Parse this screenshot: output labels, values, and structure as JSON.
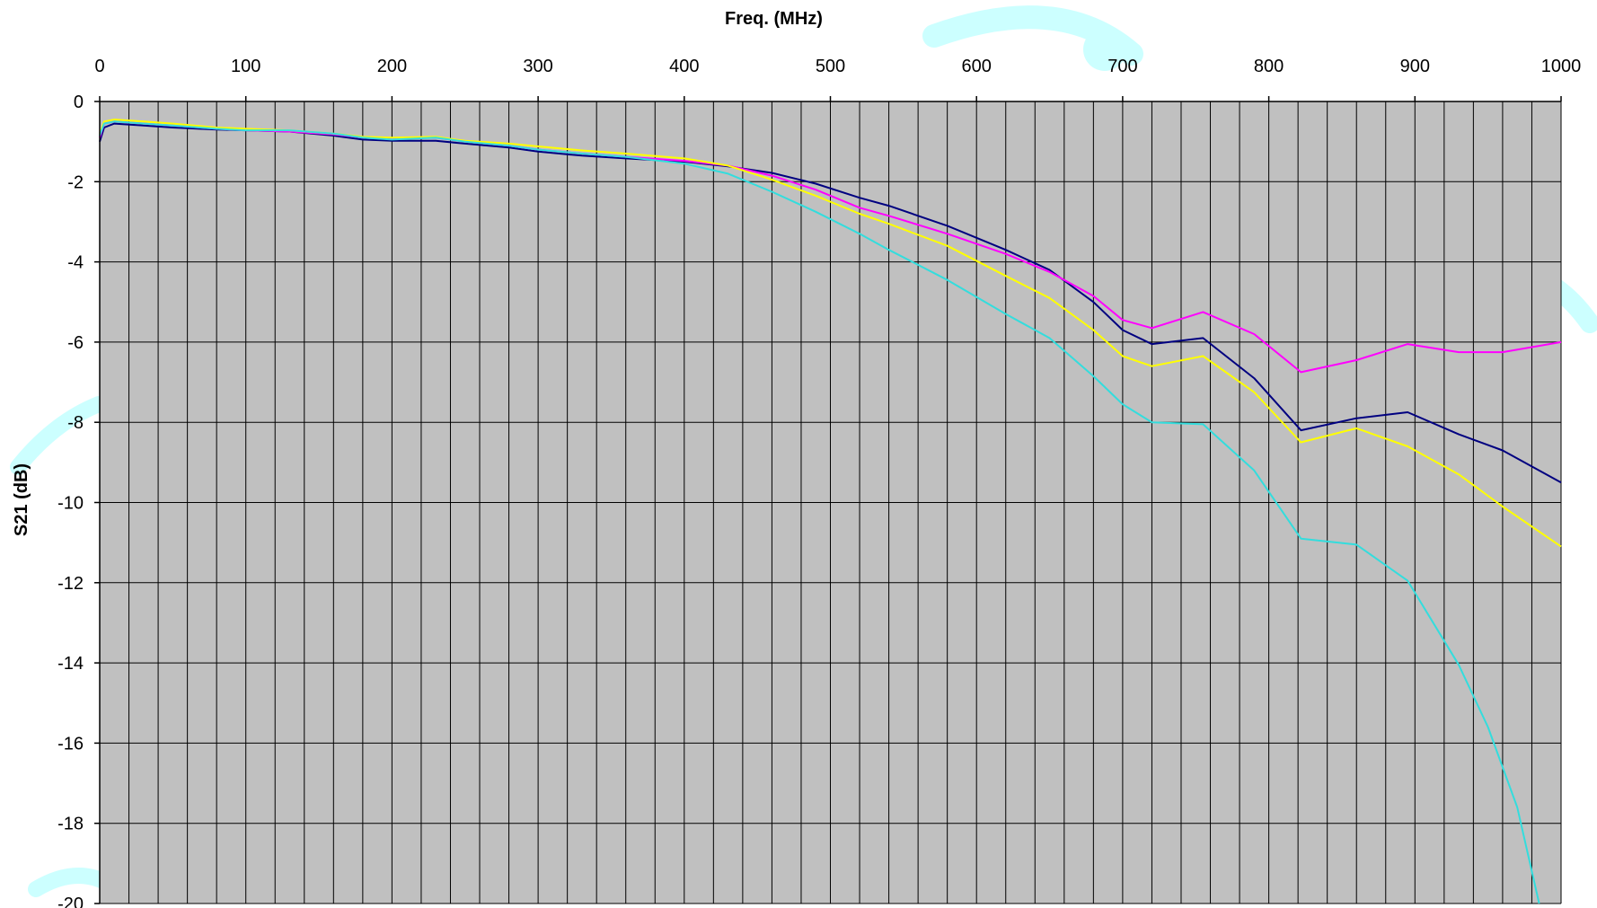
{
  "chart_data": {
    "type": "line",
    "title": "",
    "xlabel": "Freq. (MHz)",
    "ylabel": "S21 (dB)",
    "x_axis_position": "top",
    "xlim": [
      0,
      1000
    ],
    "ylim": [
      -20,
      0
    ],
    "x_ticks": [
      0,
      100,
      200,
      300,
      400,
      500,
      600,
      700,
      800,
      900,
      1000
    ],
    "y_ticks": [
      0,
      -2,
      -4,
      -6,
      -8,
      -10,
      -12,
      -14,
      -16,
      -18,
      -20
    ],
    "x_ticks_text": [
      "0",
      "100",
      "200",
      "300",
      "400",
      "500",
      "600",
      "700",
      "800",
      "900",
      "1000"
    ],
    "y_ticks_text": [
      "0",
      "-2",
      "-4",
      "-6",
      "-8",
      "-10",
      "-12",
      "-14",
      "-16",
      "-18",
      "-20"
    ],
    "grid": true,
    "vertical_grid_step": 20,
    "legend": "none",
    "plot_background": "#c0c0c0",
    "series": [
      {
        "color": "#000080",
        "x": [
          0,
          3,
          10,
          30,
          50,
          80,
          100,
          130,
          160,
          180,
          200,
          230,
          250,
          280,
          300,
          330,
          360,
          400,
          430,
          460,
          490,
          520,
          540,
          580,
          620,
          650,
          680,
          700,
          720,
          755,
          790,
          822,
          860,
          895,
          930,
          960,
          1000
        ],
        "y": [
          -1.0,
          -0.65,
          -0.55,
          -0.6,
          -0.65,
          -0.7,
          -0.72,
          -0.75,
          -0.85,
          -0.95,
          -0.98,
          -0.98,
          -1.05,
          -1.15,
          -1.25,
          -1.35,
          -1.42,
          -1.5,
          -1.62,
          -1.78,
          -2.05,
          -2.4,
          -2.6,
          -3.1,
          -3.7,
          -4.2,
          -5.0,
          -5.7,
          -6.05,
          -5.9,
          -6.9,
          -8.2,
          -7.9,
          -7.75,
          -8.3,
          -8.7,
          -9.5
        ]
      },
      {
        "color": "#ff00ff",
        "x": [
          0,
          3,
          10,
          30,
          50,
          80,
          100,
          130,
          160,
          180,
          200,
          230,
          250,
          280,
          300,
          330,
          360,
          400,
          430,
          460,
          490,
          520,
          540,
          580,
          620,
          650,
          680,
          700,
          720,
          755,
          790,
          822,
          860,
          895,
          930,
          960,
          1000
        ],
        "y": [
          -0.9,
          -0.55,
          -0.5,
          -0.55,
          -0.6,
          -0.68,
          -0.72,
          -0.75,
          -0.82,
          -0.9,
          -0.92,
          -0.9,
          -1.0,
          -1.1,
          -1.2,
          -1.3,
          -1.38,
          -1.48,
          -1.6,
          -1.85,
          -2.2,
          -2.65,
          -2.85,
          -3.3,
          -3.8,
          -4.25,
          -4.85,
          -5.45,
          -5.65,
          -5.25,
          -5.8,
          -6.75,
          -6.45,
          -6.05,
          -6.25,
          -6.25,
          -6.0
        ]
      },
      {
        "color": "#ffff00",
        "x": [
          0,
          3,
          10,
          30,
          50,
          80,
          100,
          130,
          160,
          180,
          200,
          230,
          250,
          280,
          300,
          330,
          360,
          400,
          430,
          460,
          490,
          520,
          540,
          580,
          620,
          650,
          680,
          700,
          720,
          755,
          790,
          822,
          860,
          895,
          930,
          960,
          1000
        ],
        "y": [
          -0.8,
          -0.5,
          -0.45,
          -0.5,
          -0.55,
          -0.65,
          -0.68,
          -0.72,
          -0.8,
          -0.88,
          -0.9,
          -0.88,
          -0.98,
          -1.05,
          -1.12,
          -1.22,
          -1.3,
          -1.42,
          -1.6,
          -1.95,
          -2.35,
          -2.8,
          -3.05,
          -3.6,
          -4.35,
          -4.9,
          -5.7,
          -6.35,
          -6.6,
          -6.35,
          -7.25,
          -8.5,
          -8.15,
          -8.6,
          -9.3,
          -10.1,
          -11.1
        ]
      },
      {
        "color": "#33dddd",
        "x": [
          0,
          3,
          10,
          30,
          50,
          80,
          100,
          130,
          160,
          180,
          200,
          230,
          250,
          280,
          300,
          330,
          360,
          400,
          430,
          460,
          490,
          520,
          540,
          580,
          620,
          650,
          680,
          700,
          720,
          755,
          790,
          822,
          860,
          895,
          930,
          950,
          970,
          985
        ],
        "y": [
          -0.85,
          -0.55,
          -0.5,
          -0.55,
          -0.6,
          -0.68,
          -0.72,
          -0.72,
          -0.8,
          -0.9,
          -0.95,
          -0.9,
          -1.0,
          -1.1,
          -1.2,
          -1.3,
          -1.38,
          -1.55,
          -1.8,
          -2.25,
          -2.75,
          -3.3,
          -3.7,
          -4.45,
          -5.3,
          -5.9,
          -6.85,
          -7.55,
          -8.0,
          -8.05,
          -9.2,
          -10.9,
          -11.05,
          -11.95,
          -14.05,
          -15.6,
          -17.6,
          -20.0
        ]
      }
    ]
  }
}
